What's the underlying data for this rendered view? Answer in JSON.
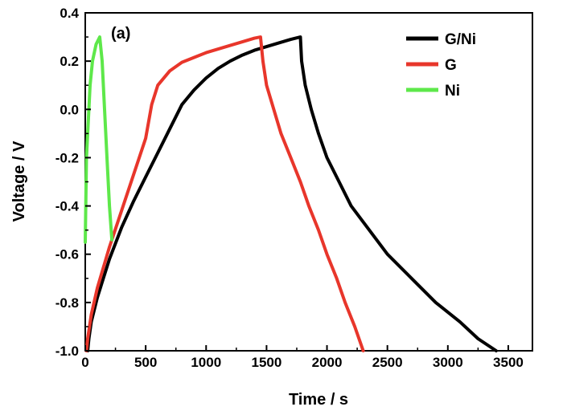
{
  "chart_data": {
    "type": "line",
    "panel_label": "(a)",
    "xlabel": "Time / s",
    "ylabel": "Voltage / V",
    "xlim": [
      0,
      3700
    ],
    "ylim": [
      -1.0,
      0.4
    ],
    "xticks": [
      0,
      500,
      1000,
      1500,
      2000,
      2500,
      3000,
      3500
    ],
    "xtick_labels": [
      "0",
      "500",
      "1000",
      "1500",
      "2000",
      "2500",
      "3000",
      "3500"
    ],
    "yticks": [
      -1.0,
      -0.8,
      -0.6,
      -0.4,
      -0.2,
      0.0,
      0.2,
      0.4
    ],
    "ytick_labels": [
      "-1.0",
      "-0.8",
      "-0.6",
      "-0.4",
      "-0.2",
      "0.0",
      "0.2",
      "0.4"
    ],
    "grid": false,
    "legend_position": "top-right",
    "series": [
      {
        "name": "G/Ni",
        "color": "#000000",
        "points": [
          [
            20,
            -1.0
          ],
          [
            30,
            -0.95
          ],
          [
            50,
            -0.88
          ],
          [
            100,
            -0.78
          ],
          [
            150,
            -0.7
          ],
          [
            200,
            -0.62
          ],
          [
            300,
            -0.49
          ],
          [
            400,
            -0.38
          ],
          [
            500,
            -0.28
          ],
          [
            600,
            -0.18
          ],
          [
            700,
            -0.08
          ],
          [
            800,
            0.02
          ],
          [
            900,
            0.08
          ],
          [
            1000,
            0.13
          ],
          [
            1100,
            0.17
          ],
          [
            1200,
            0.2
          ],
          [
            1300,
            0.225
          ],
          [
            1400,
            0.245
          ],
          [
            1500,
            0.26
          ],
          [
            1600,
            0.275
          ],
          [
            1700,
            0.29
          ],
          [
            1780,
            0.3
          ],
          [
            1790,
            0.2
          ],
          [
            1820,
            0.1
          ],
          [
            1870,
            0.0
          ],
          [
            1930,
            -0.1
          ],
          [
            2000,
            -0.2
          ],
          [
            2100,
            -0.3
          ],
          [
            2200,
            -0.4
          ],
          [
            2350,
            -0.5
          ],
          [
            2500,
            -0.6
          ],
          [
            2700,
            -0.7
          ],
          [
            2900,
            -0.8
          ],
          [
            3100,
            -0.88
          ],
          [
            3250,
            -0.95
          ],
          [
            3400,
            -1.0
          ]
        ]
      },
      {
        "name": "G",
        "color": "#e8362b",
        "points": [
          [
            10,
            -1.0
          ],
          [
            20,
            -0.95
          ],
          [
            50,
            -0.85
          ],
          [
            100,
            -0.74
          ],
          [
            200,
            -0.57
          ],
          [
            300,
            -0.42
          ],
          [
            400,
            -0.27
          ],
          [
            500,
            -0.12
          ],
          [
            550,
            0.02
          ],
          [
            600,
            0.1
          ],
          [
            700,
            0.16
          ],
          [
            800,
            0.195
          ],
          [
            900,
            0.215
          ],
          [
            1000,
            0.235
          ],
          [
            1100,
            0.25
          ],
          [
            1200,
            0.265
          ],
          [
            1300,
            0.28
          ],
          [
            1400,
            0.295
          ],
          [
            1450,
            0.3
          ],
          [
            1470,
            0.2
          ],
          [
            1500,
            0.1
          ],
          [
            1560,
            0.0
          ],
          [
            1620,
            -0.1
          ],
          [
            1700,
            -0.2
          ],
          [
            1780,
            -0.3
          ],
          [
            1850,
            -0.4
          ],
          [
            1930,
            -0.5
          ],
          [
            2000,
            -0.6
          ],
          [
            2080,
            -0.7
          ],
          [
            2150,
            -0.8
          ],
          [
            2230,
            -0.9
          ],
          [
            2300,
            -1.0
          ]
        ]
      },
      {
        "name": "Ni",
        "color": "#5ee84a",
        "points": [
          [
            0,
            -0.55
          ],
          [
            10,
            -0.2
          ],
          [
            20,
            -0.1
          ],
          [
            40,
            0.1
          ],
          [
            60,
            0.2
          ],
          [
            90,
            0.27
          ],
          [
            120,
            0.3
          ],
          [
            140,
            0.2
          ],
          [
            160,
            0.0
          ],
          [
            180,
            -0.2
          ],
          [
            200,
            -0.4
          ],
          [
            220,
            -0.54
          ]
        ]
      }
    ]
  }
}
